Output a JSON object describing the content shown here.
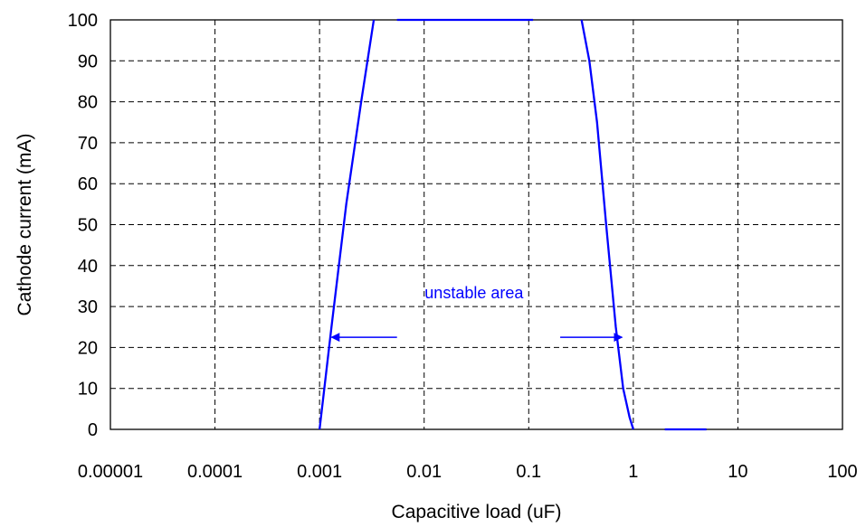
{
  "chart_data": {
    "type": "line",
    "title": "",
    "xlabel": "Capacitive load (uF)",
    "ylabel": "Cathode current (mA)",
    "x_scale": "log",
    "xlim": [
      1e-05,
      100
    ],
    "ylim": [
      0,
      100
    ],
    "grid": true,
    "legend": "none",
    "x_ticks": [
      {
        "value": 1e-05,
        "label": "0.00001"
      },
      {
        "value": 0.0001,
        "label": "0.0001"
      },
      {
        "value": 0.001,
        "label": "0.001"
      },
      {
        "value": 0.01,
        "label": "0.01"
      },
      {
        "value": 0.1,
        "label": "0.1"
      },
      {
        "value": 1,
        "label": "1"
      },
      {
        "value": 10,
        "label": "10"
      },
      {
        "value": 100,
        "label": "100"
      }
    ],
    "y_ticks": [
      {
        "value": 0,
        "label": "0"
      },
      {
        "value": 10,
        "label": "10"
      },
      {
        "value": 20,
        "label": "20"
      },
      {
        "value": 30,
        "label": "30"
      },
      {
        "value": 40,
        "label": "40"
      },
      {
        "value": 50,
        "label": "50"
      },
      {
        "value": 60,
        "label": "60"
      },
      {
        "value": 70,
        "label": "70"
      },
      {
        "value": 80,
        "label": "80"
      },
      {
        "value": 90,
        "label": "90"
      },
      {
        "value": 100,
        "label": "100"
      }
    ],
    "series": [
      {
        "color": "#0000ff",
        "segments": [
          [
            [
              0.001,
              0
            ],
            [
              0.0013,
              25
            ],
            [
              0.0018,
              55
            ],
            [
              0.0025,
              80
            ],
            [
              0.0033,
              100
            ]
          ],
          [
            [
              0.0055,
              100
            ],
            [
              0.11,
              100
            ]
          ],
          [
            [
              0.32,
              100
            ],
            [
              0.38,
              90
            ],
            [
              0.45,
              75
            ],
            [
              0.55,
              50
            ],
            [
              0.68,
              25
            ],
            [
              0.8,
              10
            ],
            [
              0.92,
              3
            ],
            [
              1.0,
              0
            ]
          ],
          [
            [
              2,
              0
            ],
            [
              5,
              0
            ]
          ]
        ]
      }
    ],
    "annotations": [
      {
        "text": "unstable area",
        "x": 0.03,
        "y": 32,
        "color": "#0000ff"
      }
    ],
    "arrows": [
      {
        "from": [
          0.0055,
          22.5
        ],
        "to": [
          0.0013,
          22.5
        ],
        "color": "#0000ff"
      },
      {
        "from": [
          0.2,
          22.5
        ],
        "to": [
          0.78,
          22.5
        ],
        "color": "#0000ff"
      }
    ]
  }
}
